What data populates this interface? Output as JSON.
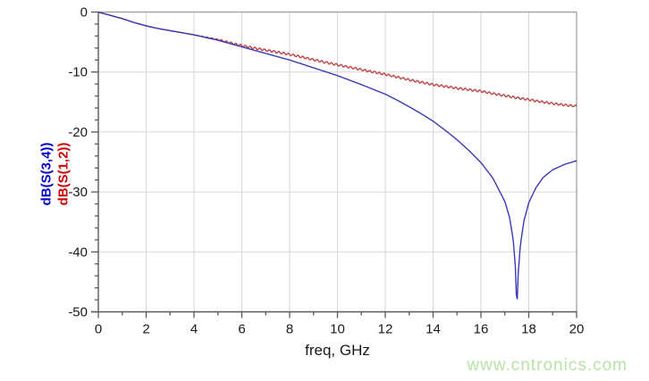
{
  "chart_data": {
    "type": "line",
    "title": "",
    "xlabel": "freq, GHz",
    "ylabel": "",
    "x_range": [
      0,
      20
    ],
    "y_range": [
      -50,
      0
    ],
    "grid": true,
    "legend_position": "left-axis-rotated",
    "x_major_ticks": [
      0,
      2,
      4,
      6,
      8,
      10,
      12,
      14,
      16,
      18,
      20
    ],
    "x_tick_labels": [
      "0",
      "2",
      "4",
      "6",
      "8",
      "10",
      "12",
      "14",
      "16",
      "18",
      "20"
    ],
    "x_minor_step": 1,
    "y_major_ticks": [
      0,
      -10,
      -20,
      -30,
      -40,
      -50
    ],
    "y_tick_labels": [
      "0",
      "-10",
      "-20",
      "-30",
      "-40",
      "-50"
    ],
    "y_minor_step": 2,
    "series": [
      {
        "name": "dB(S(1,2))",
        "color": "#c24545",
        "label_color": "#cc0000",
        "ripple": {
          "start": 3.5,
          "full": 6,
          "amplitude": 0.18,
          "period": 0.2
        },
        "points": [
          [
            0,
            0
          ],
          [
            0.5,
            -0.55
          ],
          [
            1,
            -1.1
          ],
          [
            1.5,
            -1.75
          ],
          [
            2,
            -2.3
          ],
          [
            2.5,
            -2.75
          ],
          [
            3,
            -3.1
          ],
          [
            3.5,
            -3.45
          ],
          [
            4,
            -3.8
          ],
          [
            4.5,
            -4.2
          ],
          [
            5,
            -4.6
          ],
          [
            5.5,
            -5.1
          ],
          [
            6,
            -5.6
          ],
          [
            6.5,
            -6.0
          ],
          [
            7,
            -6.35
          ],
          [
            7.5,
            -6.7
          ],
          [
            8,
            -7.05
          ],
          [
            8.5,
            -7.5
          ],
          [
            9,
            -7.95
          ],
          [
            9.5,
            -8.4
          ],
          [
            10,
            -8.8
          ],
          [
            10.5,
            -9.2
          ],
          [
            11,
            -9.6
          ],
          [
            11.5,
            -10.0
          ],
          [
            12,
            -10.4
          ],
          [
            12.5,
            -10.85
          ],
          [
            13,
            -11.3
          ],
          [
            13.5,
            -11.7
          ],
          [
            14,
            -12.1
          ],
          [
            14.5,
            -12.4
          ],
          [
            15,
            -12.7
          ],
          [
            15.5,
            -12.95
          ],
          [
            16,
            -13.2
          ],
          [
            16.5,
            -13.6
          ],
          [
            17,
            -13.95
          ],
          [
            17.5,
            -14.3
          ],
          [
            18,
            -14.6
          ],
          [
            18.5,
            -14.95
          ],
          [
            19,
            -15.25
          ],
          [
            19.5,
            -15.5
          ],
          [
            20,
            -15.7
          ]
        ]
      },
      {
        "name": "dB(S(3,4))",
        "color": "#3a3ab8",
        "label_color": "#0000cc",
        "points": [
          [
            0,
            0
          ],
          [
            0.5,
            -0.55
          ],
          [
            1,
            -1.1
          ],
          [
            1.5,
            -1.75
          ],
          [
            2,
            -2.3
          ],
          [
            2.5,
            -2.75
          ],
          [
            3,
            -3.1
          ],
          [
            3.5,
            -3.45
          ],
          [
            4,
            -3.8
          ],
          [
            4.5,
            -4.25
          ],
          [
            5,
            -4.7
          ],
          [
            5.5,
            -5.25
          ],
          [
            6,
            -5.8
          ],
          [
            6.5,
            -6.35
          ],
          [
            7,
            -6.9
          ],
          [
            7.5,
            -7.45
          ],
          [
            8,
            -8.0
          ],
          [
            8.5,
            -8.65
          ],
          [
            9,
            -9.3
          ],
          [
            9.5,
            -9.95
          ],
          [
            10,
            -10.6
          ],
          [
            10.5,
            -11.35
          ],
          [
            11,
            -12.1
          ],
          [
            11.5,
            -12.9
          ],
          [
            12,
            -13.7
          ],
          [
            12.5,
            -14.7
          ],
          [
            13,
            -15.8
          ],
          [
            13.5,
            -16.95
          ],
          [
            14,
            -18.2
          ],
          [
            14.5,
            -19.7
          ],
          [
            15,
            -21.3
          ],
          [
            15.5,
            -23.1
          ],
          [
            16,
            -25.1
          ],
          [
            16.5,
            -27.7
          ],
          [
            17,
            -31.6
          ],
          [
            17.2,
            -34.3
          ],
          [
            17.35,
            -38.0
          ],
          [
            17.45,
            -43.0
          ],
          [
            17.5,
            -50.0
          ],
          [
            17.56,
            -43.5
          ],
          [
            17.65,
            -38.8
          ],
          [
            17.8,
            -34.8
          ],
          [
            18,
            -31.8
          ],
          [
            18.3,
            -29.3
          ],
          [
            18.6,
            -27.6
          ],
          [
            19,
            -26.3
          ],
          [
            19.5,
            -25.4
          ],
          [
            20,
            -24.8
          ]
        ]
      }
    ]
  },
  "labels": {
    "y_axis_series_blue": "dB(S(3,4))",
    "y_axis_series_red": "dB(S(1,2))",
    "x_axis_title": "freq, GHz"
  },
  "watermark": {
    "text": "www.cntronics.com",
    "color": "#b9e2a6"
  },
  "style": {
    "axis_color": "#5a5a5a",
    "frame_color": "#9a9a9a",
    "grid_color": "#d6d6d6",
    "tick_label_color": "#1a1a1a"
  }
}
